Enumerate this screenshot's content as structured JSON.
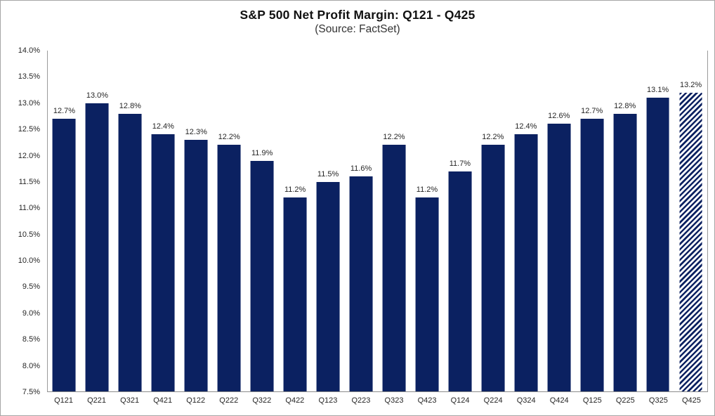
{
  "chart_data": {
    "type": "bar",
    "title": "S&P 500 Net Profit Margin: Q121 - Q425",
    "subtitle": "(Source: FactSet)",
    "categories": [
      "Q121",
      "Q221",
      "Q321",
      "Q421",
      "Q122",
      "Q222",
      "Q322",
      "Q422",
      "Q123",
      "Q223",
      "Q323",
      "Q423",
      "Q124",
      "Q224",
      "Q324",
      "Q424",
      "Q125",
      "Q225",
      "Q325",
      "Q425"
    ],
    "values": [
      12.7,
      13.0,
      12.8,
      12.4,
      12.3,
      12.2,
      11.9,
      11.2,
      11.5,
      11.6,
      12.2,
      11.2,
      11.7,
      12.2,
      12.4,
      12.6,
      12.7,
      12.8,
      13.1,
      13.2
    ],
    "data_labels": [
      "12.7%",
      "13.0%",
      "12.8%",
      "12.4%",
      "12.3%",
      "12.2%",
      "11.9%",
      "11.2%",
      "11.5%",
      "11.6%",
      "12.2%",
      "11.2%",
      "11.7%",
      "12.2%",
      "12.4%",
      "12.6%",
      "12.7%",
      "12.8%",
      "13.1%",
      "13.2%"
    ],
    "yticks": [
      "14.0%",
      "13.5%",
      "13.0%",
      "12.5%",
      "12.0%",
      "11.5%",
      "11.0%",
      "10.5%",
      "10.0%",
      "9.5%",
      "9.0%",
      "8.5%",
      "8.0%",
      "7.5%"
    ],
    "ylim": [
      7.5,
      14.0
    ],
    "xlabel": "",
    "ylabel": "",
    "grid": false,
    "legend": "none",
    "bar_color": "#0b2161",
    "hatched_categories": [
      "Q425"
    ],
    "hatch_note": "last bar rendered as diagonal-striped estimate"
  }
}
